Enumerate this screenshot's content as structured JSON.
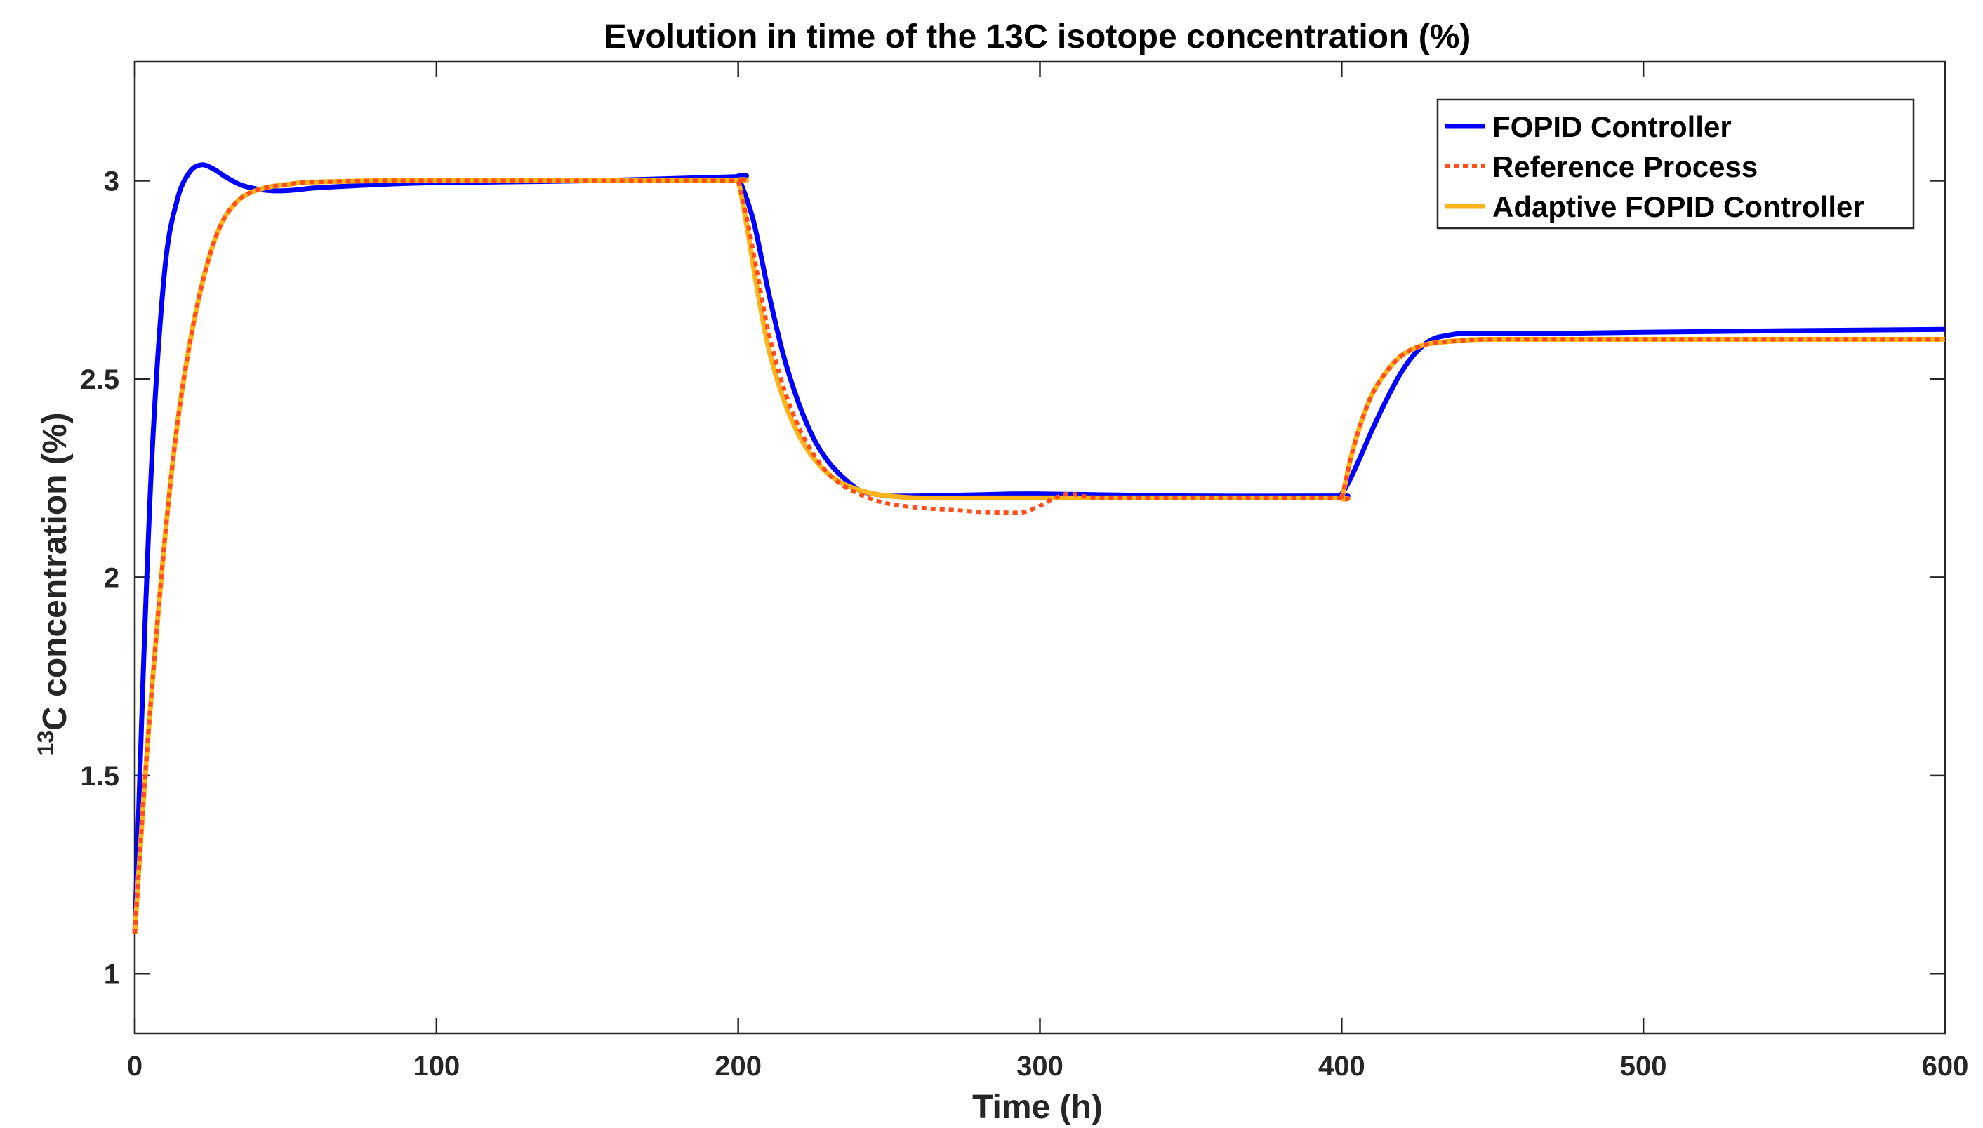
{
  "chart_data": {
    "type": "line",
    "title": "Evolution in time of the 13C isotope concentration (%)",
    "xlabel": "Time (h)",
    "ylabel": {
      "superscript": "13",
      "text": "C concentration (%)"
    },
    "xlim": [
      0,
      600
    ],
    "ylim": [
      0.85,
      3.3
    ],
    "xticks": [
      0,
      100,
      200,
      300,
      400,
      500,
      600
    ],
    "yticks": [
      1,
      1.5,
      2,
      2.5,
      3
    ],
    "xtick_labels": [
      "0",
      "100",
      "200",
      "300",
      "400",
      "500",
      "600"
    ],
    "ytick_labels": [
      "1",
      "1.5",
      "2",
      "2.5",
      "3"
    ],
    "grid": false,
    "legend_position": "top-right",
    "series": [
      {
        "name": "FOPID Controller",
        "color": "#0000ff",
        "style": "solid",
        "x": [
          0,
          3,
          6,
          10,
          14,
          18,
          22,
          26,
          30,
          35,
          40,
          45,
          50,
          55,
          60,
          80,
          100,
          150,
          199,
          200,
          205,
          210,
          215,
          220,
          225,
          230,
          235,
          240,
          245,
          250,
          260,
          280,
          300,
          350,
          398,
          400,
          403,
          406,
          410,
          415,
          420,
          425,
          430,
          435,
          440,
          450,
          470,
          500,
          550,
          600
        ],
        "y": [
          1.1,
          1.8,
          2.35,
          2.78,
          2.95,
          3.02,
          3.04,
          3.03,
          3.01,
          2.99,
          2.98,
          2.975,
          2.975,
          2.978,
          2.982,
          2.99,
          2.995,
          3.0,
          3.01,
          3.01,
          2.9,
          2.72,
          2.56,
          2.44,
          2.35,
          2.29,
          2.25,
          2.22,
          2.21,
          2.205,
          2.205,
          2.208,
          2.21,
          2.205,
          2.205,
          2.21,
          2.25,
          2.3,
          2.37,
          2.45,
          2.52,
          2.57,
          2.6,
          2.61,
          2.615,
          2.615,
          2.615,
          2.618,
          2.622,
          2.625
        ]
      },
      {
        "name": "Reference Process",
        "color": "#ff4d1a",
        "style": "dotted",
        "x": [
          0,
          3,
          6,
          10,
          14,
          18,
          22,
          26,
          30,
          35,
          40,
          45,
          50,
          55,
          60,
          80,
          100,
          150,
          199,
          200,
          203,
          206,
          210,
          215,
          220,
          225,
          230,
          235,
          240,
          245,
          250,
          260,
          270,
          280,
          290,
          295,
          300,
          305,
          310,
          320,
          350,
          398,
          400,
          403,
          406,
          410,
          415,
          420,
          425,
          430,
          440,
          450,
          500,
          550,
          600
        ],
        "y": [
          1.1,
          1.45,
          1.75,
          2.1,
          2.38,
          2.58,
          2.73,
          2.84,
          2.91,
          2.955,
          2.975,
          2.985,
          2.99,
          2.995,
          2.997,
          3.0,
          3.0,
          3.0,
          3.0,
          3.0,
          2.9,
          2.78,
          2.62,
          2.48,
          2.38,
          2.31,
          2.26,
          2.23,
          2.21,
          2.195,
          2.185,
          2.175,
          2.17,
          2.165,
          2.163,
          2.165,
          2.18,
          2.2,
          2.21,
          2.2,
          2.2,
          2.2,
          2.2,
          2.3,
          2.38,
          2.46,
          2.52,
          2.56,
          2.58,
          2.59,
          2.597,
          2.6,
          2.6,
          2.6,
          2.6
        ]
      },
      {
        "name": "Adaptive FOPID Controller",
        "color": "#ffb31a",
        "style": "solid",
        "x": [
          0,
          3,
          6,
          10,
          14,
          18,
          22,
          26,
          30,
          35,
          40,
          45,
          50,
          55,
          60,
          80,
          100,
          150,
          199,
          200,
          203,
          206,
          210,
          215,
          220,
          225,
          230,
          235,
          240,
          245,
          250,
          260,
          280,
          300,
          350,
          398,
          400,
          403,
          406,
          410,
          415,
          420,
          425,
          430,
          440,
          450,
          500,
          550,
          600
        ],
        "y": [
          1.1,
          1.45,
          1.75,
          2.1,
          2.38,
          2.58,
          2.73,
          2.84,
          2.91,
          2.955,
          2.975,
          2.985,
          2.99,
          2.995,
          2.997,
          3.0,
          3.0,
          3.0,
          3.0,
          3.0,
          2.88,
          2.74,
          2.58,
          2.45,
          2.36,
          2.3,
          2.26,
          2.235,
          2.22,
          2.21,
          2.205,
          2.2,
          2.2,
          2.2,
          2.2,
          2.2,
          2.2,
          2.3,
          2.38,
          2.46,
          2.52,
          2.56,
          2.58,
          2.59,
          2.597,
          2.6,
          2.6,
          2.6,
          2.6
        ]
      }
    ]
  }
}
